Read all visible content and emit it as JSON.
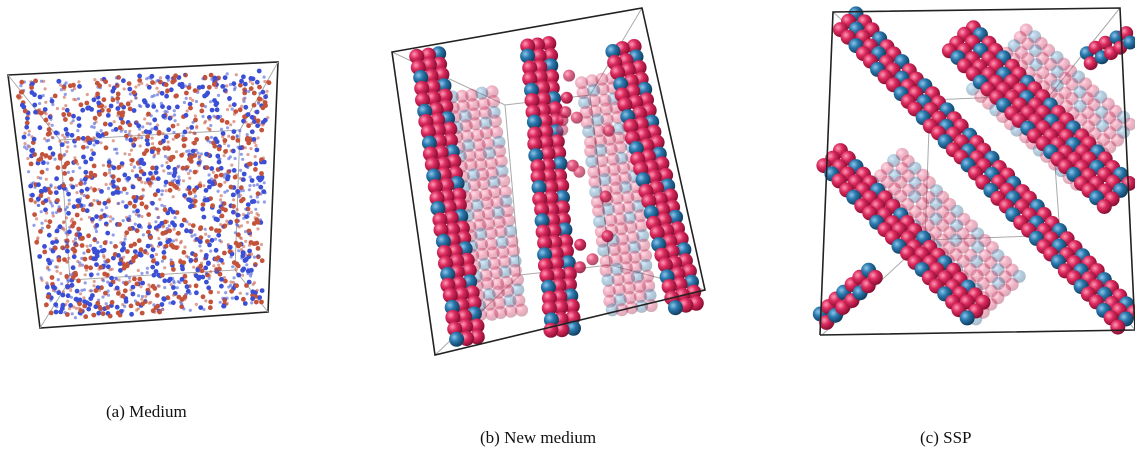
{
  "figure": {
    "panels": [
      {
        "caption": "(a) Medium"
      },
      {
        "caption": "(b) New medium"
      },
      {
        "caption": "(c) SSP"
      }
    ]
  }
}
